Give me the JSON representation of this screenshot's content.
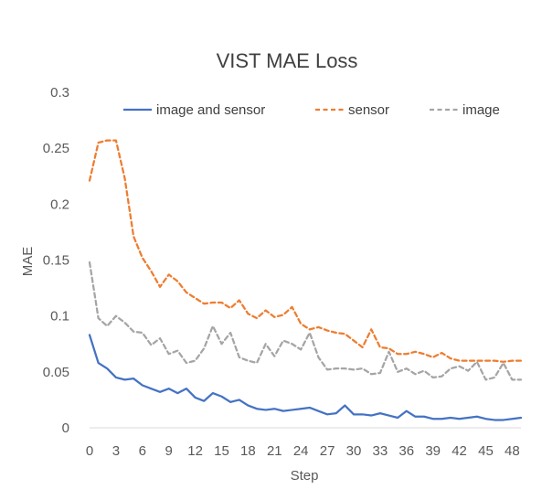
{
  "chart_data": {
    "type": "line",
    "title": "VIST MAE Loss",
    "xlabel": "Step",
    "ylabel": "MAE",
    "ylim": [
      0,
      0.3
    ],
    "xlim": [
      0,
      49
    ],
    "y_ticks": [
      "0",
      "0.05",
      "0.1",
      "0.15",
      "0.2",
      "0.25",
      "0.3"
    ],
    "x_ticks": [
      "0",
      "3",
      "6",
      "9",
      "12",
      "15",
      "18",
      "21",
      "24",
      "27",
      "30",
      "33",
      "36",
      "39",
      "42",
      "45",
      "48"
    ],
    "grid": false,
    "legend_position": "top",
    "series": [
      {
        "name": "image and sensor",
        "color": "#4472C4",
        "dash": "solid",
        "x": [
          0,
          1,
          2,
          3,
          4,
          5,
          6,
          7,
          8,
          9,
          10,
          11,
          12,
          13,
          14,
          15,
          16,
          17,
          18,
          19,
          20,
          21,
          22,
          23,
          24,
          25,
          26,
          27,
          28,
          29,
          30,
          31,
          32,
          33,
          34,
          35,
          36,
          37,
          38,
          39,
          40,
          41,
          42,
          43,
          44,
          45,
          46,
          47,
          48,
          49
        ],
        "values": [
          0.083,
          0.058,
          0.053,
          0.045,
          0.043,
          0.044,
          0.038,
          0.035,
          0.032,
          0.035,
          0.031,
          0.035,
          0.027,
          0.024,
          0.031,
          0.028,
          0.023,
          0.025,
          0.02,
          0.017,
          0.016,
          0.017,
          0.015,
          0.016,
          0.017,
          0.018,
          0.015,
          0.012,
          0.013,
          0.02,
          0.012,
          0.012,
          0.011,
          0.013,
          0.011,
          0.009,
          0.015,
          0.01,
          0.01,
          0.008,
          0.008,
          0.009,
          0.008,
          0.009,
          0.01,
          0.008,
          0.007,
          0.007,
          0.008,
          0.009
        ]
      },
      {
        "name": "sensor",
        "color": "#ED7D31",
        "dash": "dashed",
        "x": [
          0,
          1,
          2,
          3,
          4,
          5,
          6,
          7,
          8,
          9,
          10,
          11,
          12,
          13,
          14,
          15,
          16,
          17,
          18,
          19,
          20,
          21,
          22,
          23,
          24,
          25,
          26,
          27,
          28,
          29,
          30,
          31,
          32,
          33,
          34,
          35,
          36,
          37,
          38,
          39,
          40,
          41,
          42,
          43,
          44,
          45,
          46,
          47,
          48,
          49
        ],
        "values": [
          0.221,
          0.255,
          0.257,
          0.257,
          0.223,
          0.171,
          0.152,
          0.14,
          0.126,
          0.137,
          0.131,
          0.121,
          0.116,
          0.111,
          0.112,
          0.112,
          0.107,
          0.114,
          0.102,
          0.098,
          0.105,
          0.099,
          0.101,
          0.108,
          0.093,
          0.088,
          0.09,
          0.087,
          0.085,
          0.084,
          0.078,
          0.072,
          0.088,
          0.072,
          0.071,
          0.066,
          0.066,
          0.068,
          0.066,
          0.063,
          0.067,
          0.062,
          0.06,
          0.06,
          0.06,
          0.06,
          0.06,
          0.059,
          0.06,
          0.06
        ]
      },
      {
        "name": "image",
        "color": "#A5A5A5",
        "dash": "dashed",
        "x": [
          0,
          1,
          2,
          3,
          4,
          5,
          6,
          7,
          8,
          9,
          10,
          11,
          12,
          13,
          14,
          15,
          16,
          17,
          18,
          19,
          20,
          21,
          22,
          23,
          24,
          25,
          26,
          27,
          28,
          29,
          30,
          31,
          32,
          33,
          34,
          35,
          36,
          37,
          38,
          39,
          40,
          41,
          42,
          43,
          44,
          45,
          46,
          47,
          48,
          49
        ],
        "values": [
          0.148,
          0.098,
          0.091,
          0.1,
          0.094,
          0.086,
          0.085,
          0.074,
          0.08,
          0.066,
          0.069,
          0.058,
          0.06,
          0.071,
          0.091,
          0.075,
          0.085,
          0.063,
          0.06,
          0.058,
          0.075,
          0.064,
          0.078,
          0.075,
          0.07,
          0.085,
          0.063,
          0.052,
          0.053,
          0.053,
          0.052,
          0.053,
          0.048,
          0.049,
          0.068,
          0.05,
          0.053,
          0.048,
          0.051,
          0.045,
          0.046,
          0.053,
          0.055,
          0.051,
          0.059,
          0.043,
          0.045,
          0.058,
          0.043,
          0.043
        ]
      }
    ]
  }
}
